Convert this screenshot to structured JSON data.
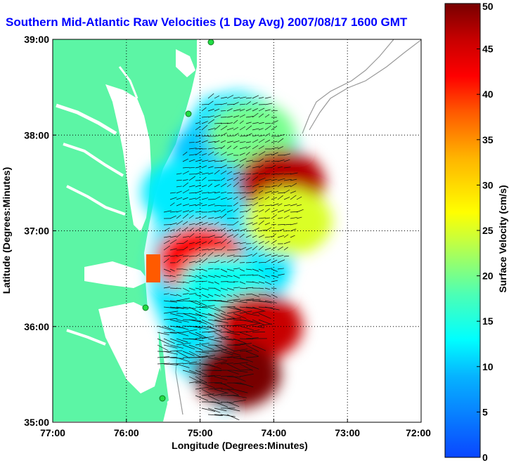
{
  "chart_data": {
    "type": "heatmap",
    "title": "Southern Mid-Atlantic Raw Velocities (1 Day Avg) 2007/08/17 1600 GMT",
    "xlabel": "Longitude (Degrees:Minutes)",
    "ylabel": "Latitude (Degrees:Minutes)",
    "x_tick_labels": [
      "77:00",
      "76:00",
      "75:00",
      "74:00",
      "73:00",
      "72:00"
    ],
    "y_tick_labels": [
      "39:00",
      "38:00",
      "37:00",
      "36:00",
      "35:00"
    ],
    "xlim": [
      -77,
      -72
    ],
    "ylim": [
      35,
      39
    ],
    "grid": true,
    "colorbar": {
      "label": "Surface Velocity (cm/s)",
      "min": 0,
      "max": 50,
      "tick_labels": [
        "0",
        "5",
        "10",
        "15",
        "20",
        "25",
        "30",
        "35",
        "40",
        "45",
        "50"
      ]
    },
    "field_regions": [
      {
        "lon": -74.8,
        "lat": 37.8,
        "speed": 10
      },
      {
        "lon": -75.2,
        "lat": 37.4,
        "speed": 12
      },
      {
        "lon": -74.3,
        "lat": 38.0,
        "speed": 20
      },
      {
        "lon": -73.9,
        "lat": 37.5,
        "speed": 47
      },
      {
        "lon": -73.8,
        "lat": 37.1,
        "speed": 25
      },
      {
        "lon": -75.0,
        "lat": 36.7,
        "speed": 42
      },
      {
        "lon": -74.7,
        "lat": 36.4,
        "speed": 14
      },
      {
        "lon": -74.2,
        "lat": 36.0,
        "speed": 46
      },
      {
        "lon": -74.5,
        "lat": 35.5,
        "speed": 50
      }
    ]
  },
  "colors": {
    "land": "#5cf5a5",
    "water": "#ffffff",
    "title": "#0000ff",
    "grid": "#000000",
    "stations": "#22dd44"
  }
}
